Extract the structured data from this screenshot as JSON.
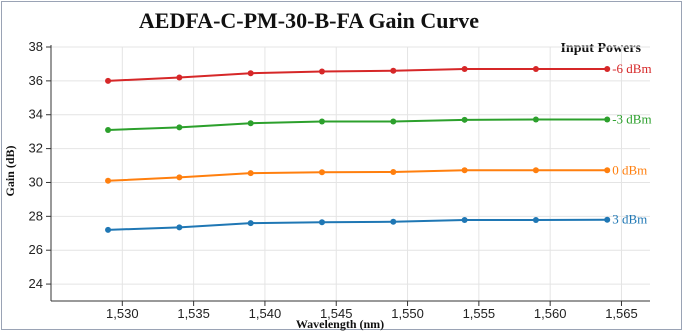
{
  "chart_data": {
    "type": "line",
    "title": "AEDFA-C-PM-30-B-FA Gain Curve",
    "xlabel": "Wavelength (nm)",
    "ylabel": "Gain (dB)",
    "legend_title": "Input Powers",
    "xlim": [
      1525,
      1567
    ],
    "ylim": [
      23,
      38
    ],
    "x_ticks": [
      1530,
      1535,
      1540,
      1545,
      1550,
      1555,
      1560,
      1565
    ],
    "x_tick_labels": [
      "1,530",
      "1,535",
      "1,540",
      "1,545",
      "1,550",
      "1,555",
      "1,560",
      "1,565"
    ],
    "y_ticks": [
      24,
      26,
      28,
      30,
      32,
      34,
      36,
      38
    ],
    "y_tick_labels": [
      "24",
      "26",
      "28",
      "30",
      "32",
      "34",
      "36",
      "38"
    ],
    "grid": true,
    "x": [
      1529,
      1534,
      1539,
      1544,
      1549,
      1554,
      1559,
      1564
    ],
    "series": [
      {
        "name": "-6 dBm",
        "color": "#d62728",
        "values": [
          36.0,
          36.2,
          36.45,
          36.55,
          36.6,
          36.7,
          36.7,
          36.7
        ]
      },
      {
        "name": "-3 dBm",
        "color": "#2ca02c",
        "values": [
          33.1,
          33.25,
          33.5,
          33.6,
          33.6,
          33.7,
          33.72,
          33.72
        ]
      },
      {
        "name": "0 dBm",
        "color": "#ff7f0e",
        "values": [
          30.1,
          30.3,
          30.55,
          30.6,
          30.62,
          30.72,
          30.72,
          30.72
        ]
      },
      {
        "name": "3 dBm",
        "color": "#1f77b4",
        "values": [
          27.2,
          27.35,
          27.6,
          27.65,
          27.68,
          27.78,
          27.78,
          27.8
        ]
      }
    ]
  }
}
